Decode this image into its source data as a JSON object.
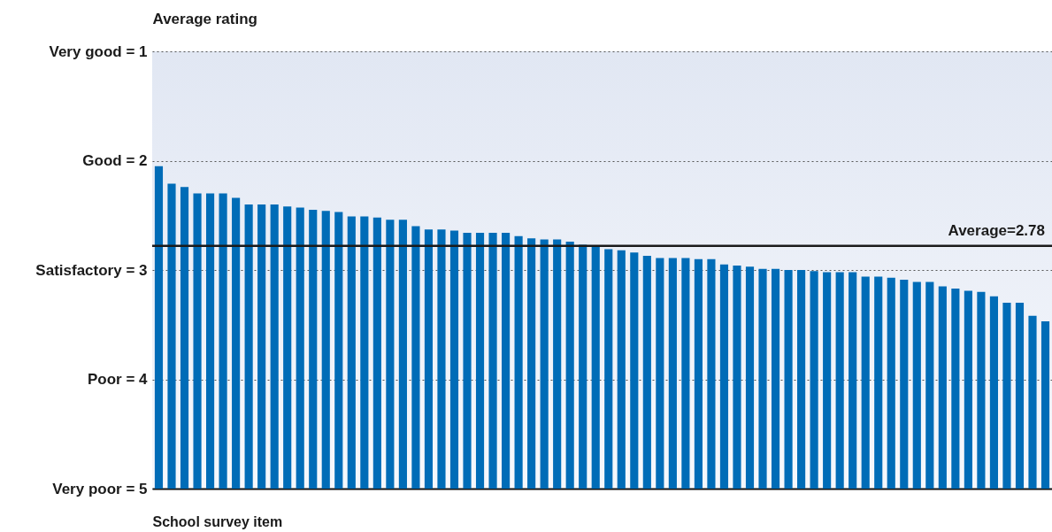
{
  "chart_data": {
    "type": "bar",
    "ylabel": "Average rating",
    "xlabel": "School survey item",
    "categories": [
      null,
      null,
      null,
      null,
      null,
      null,
      null,
      null,
      null,
      null,
      null,
      null,
      null,
      null,
      null,
      null,
      null,
      null,
      null,
      null,
      null,
      null,
      null,
      null,
      null,
      null,
      null,
      null,
      null,
      null,
      null,
      null,
      null,
      null,
      null,
      null,
      null,
      null,
      null,
      null,
      null,
      null,
      null,
      null,
      null,
      null,
      null,
      null,
      null,
      null,
      null,
      null,
      null,
      null,
      null,
      null,
      null,
      null,
      null,
      null,
      null,
      null,
      null,
      null,
      null,
      null,
      null,
      null,
      null,
      null
    ],
    "base": [
      5,
      5,
      5,
      5,
      5,
      5,
      5,
      5,
      5,
      5,
      5,
      5,
      5,
      5,
      5,
      5,
      5,
      5,
      5,
      5,
      5,
      5,
      5,
      5,
      5,
      5,
      5,
      5,
      5,
      5,
      5,
      5,
      5,
      5,
      5,
      5,
      5,
      5,
      5,
      5,
      5,
      5,
      5,
      5,
      5,
      5,
      5,
      5,
      5,
      5,
      5,
      5,
      5,
      5,
      5,
      5,
      5,
      5,
      5,
      5,
      5,
      5,
      5,
      5,
      5,
      5,
      5,
      5,
      5,
      5
    ],
    "values": [
      -2.95,
      -2.79,
      -2.76,
      -2.7,
      -2.7,
      -2.7,
      -2.66,
      -2.6,
      -2.6,
      -2.6,
      -2.58,
      -2.57,
      -2.55,
      -2.54,
      -2.53,
      -2.49,
      -2.49,
      -2.48,
      -2.46,
      -2.46,
      -2.4,
      -2.37,
      -2.37,
      -2.36,
      -2.34,
      -2.34,
      -2.34,
      -2.34,
      -2.31,
      -2.29,
      -2.28,
      -2.28,
      -2.26,
      -2.23,
      -2.21,
      -2.19,
      -2.18,
      -2.16,
      -2.13,
      -2.11,
      -2.11,
      -2.11,
      -2.1,
      -2.1,
      -2.05,
      -2.04,
      -2.03,
      -2.01,
      -2.01,
      -2.0,
      -2.0,
      -1.99,
      -1.98,
      -1.98,
      -1.98,
      -1.94,
      -1.94,
      -1.93,
      -1.91,
      -1.89,
      -1.89,
      -1.85,
      -1.83,
      -1.81,
      -1.8,
      -1.76,
      -1.7,
      -1.7,
      -1.58,
      -1.53
    ],
    "color": "#006cb7",
    "ylim": [
      5,
      1
    ],
    "yticks": [
      {
        "value": 1,
        "label": "Very good = 1"
      },
      {
        "value": 2,
        "label": "Good = 2"
      },
      {
        "value": 3,
        "label": "Satisfactory = 3"
      },
      {
        "value": 4,
        "label": "Poor = 4"
      },
      {
        "value": 5,
        "label": "Very poor = 5"
      }
    ],
    "grid": "y",
    "ref_lines": [
      {
        "axis": "y",
        "value": 2.78,
        "label": "Average=2.78",
        "color": "#1a1a1a"
      }
    ]
  }
}
